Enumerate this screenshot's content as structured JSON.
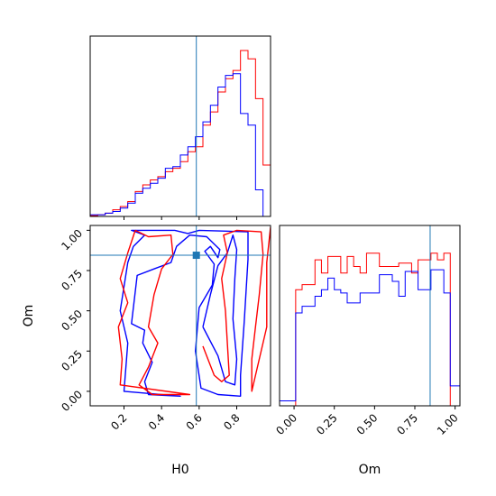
{
  "chart_data": [
    {
      "panel": "H0 marginal",
      "type": "histogram",
      "x_range": [
        0.02,
        0.98
      ],
      "bins": [
        0.02,
        0.06,
        0.1,
        0.14,
        0.18,
        0.22,
        0.26,
        0.3,
        0.34,
        0.38,
        0.42,
        0.46,
        0.5,
        0.54,
        0.58,
        0.62,
        0.66,
        0.7,
        0.74,
        0.78,
        0.82,
        0.86,
        0.9,
        0.94,
        0.98
      ],
      "series": [
        {
          "color": "#ff0000",
          "values": [
            0.005,
            0.01,
            0.02,
            0.04,
            0.06,
            0.09,
            0.15,
            0.19,
            0.22,
            0.24,
            0.27,
            0.29,
            0.33,
            0.39,
            0.42,
            0.55,
            0.63,
            0.75,
            0.83,
            0.88,
            1.0,
            0.95,
            0.71,
            0.31
          ]
        },
        {
          "color": "#0000ff",
          "values": [
            0.01,
            0.01,
            0.02,
            0.03,
            0.05,
            0.08,
            0.14,
            0.17,
            0.2,
            0.23,
            0.29,
            0.3,
            0.37,
            0.42,
            0.48,
            0.57,
            0.67,
            0.78,
            0.85,
            0.86,
            0.62,
            0.55,
            0.16,
            0.0
          ]
        }
      ],
      "truth_line": 0.585
    },
    {
      "panel": "Om marginal",
      "type": "histogram",
      "x_range": [
        -0.09,
        1.03
      ],
      "bins": [
        -0.09,
        -0.03,
        0.01,
        0.05,
        0.09,
        0.13,
        0.17,
        0.21,
        0.25,
        0.29,
        0.33,
        0.37,
        0.41,
        0.45,
        0.49,
        0.53,
        0.57,
        0.61,
        0.65,
        0.69,
        0.73,
        0.77,
        0.81,
        0.85,
        0.89,
        0.93,
        0.97,
        1.03
      ],
      "series": [
        {
          "color": "#ff0000",
          "values": [
            0,
            0,
            0.7,
            0.73,
            0.73,
            0.88,
            0.8,
            0.9,
            0.9,
            0.8,
            0.9,
            0.84,
            0.8,
            0.92,
            0.92,
            0.84,
            0.84,
            0.84,
            0.86,
            0.86,
            0.8,
            0.88,
            0.88,
            0.92,
            0.88,
            0.92,
            0
          ]
        },
        {
          "color": "#0000ff",
          "values": [
            0.03,
            0.03,
            0.56,
            0.6,
            0.6,
            0.66,
            0.7,
            0.77,
            0.7,
            0.68,
            0.62,
            0.62,
            0.68,
            0.68,
            0.68,
            0.79,
            0.79,
            0.75,
            0.66,
            0.81,
            0.81,
            0.7,
            0.7,
            0.82,
            0.82,
            0.68,
            0.12
          ]
        }
      ],
      "truth_line": 0.845
    },
    {
      "panel": "H0 vs Om joint",
      "type": "contour",
      "x_range": [
        0.02,
        0.98
      ],
      "y_range": [
        -0.09,
        1.03
      ],
      "xlabel": "H0",
      "ylabel": "Om",
      "xticks": [
        "0.2",
        "0.4",
        "0.6",
        "0.8"
      ],
      "xtick_values": [
        0.2,
        0.4,
        0.6,
        0.8
      ],
      "yticks": [
        "0.00",
        "0.25",
        "0.50",
        "0.75",
        "1.00"
      ],
      "ytick_values": [
        0.0,
        0.25,
        0.5,
        0.75,
        1.0
      ],
      "truth_point": [
        0.585,
        0.845
      ],
      "contours": [
        {
          "color": "#0000ff",
          "points": [
            [
              0.25,
              0.9
            ],
            [
              0.31,
              0.97
            ],
            [
              0.24,
              1.0
            ],
            [
              0.47,
              1.0
            ],
            [
              0.54,
              0.98
            ],
            [
              0.6,
              1.0
            ],
            [
              0.86,
              0.99
            ],
            [
              0.86,
              0.82
            ],
            [
              0.84,
              0.43
            ],
            [
              0.82,
              0.1
            ],
            [
              0.82,
              -0.03
            ],
            [
              0.7,
              -0.02
            ],
            [
              0.61,
              0.02
            ],
            [
              0.58,
              0.25
            ],
            [
              0.6,
              0.52
            ],
            [
              0.67,
              0.66
            ],
            [
              0.68,
              0.79
            ],
            [
              0.63,
              0.87
            ],
            [
              0.66,
              0.9
            ],
            [
              0.7,
              0.83
            ],
            [
              0.71,
              0.88
            ],
            [
              0.64,
              0.96
            ],
            [
              0.55,
              0.97
            ],
            [
              0.48,
              0.9
            ],
            [
              0.45,
              0.8
            ],
            [
              0.36,
              0.76
            ],
            [
              0.27,
              0.72
            ],
            [
              0.24,
              0.42
            ],
            [
              0.31,
              0.38
            ],
            [
              0.3,
              0.3
            ],
            [
              0.35,
              0.18
            ],
            [
              0.31,
              0.06
            ],
            [
              0.33,
              -0.02
            ],
            [
              0.5,
              -0.03
            ],
            [
              0.2,
              0.0
            ],
            [
              0.22,
              0.3
            ],
            [
              0.18,
              0.5
            ],
            [
              0.22,
              0.8
            ],
            [
              0.25,
              0.9
            ]
          ]
        },
        {
          "color": "#0000ff",
          "points": [
            [
              0.62,
              0.4
            ],
            [
              0.7,
              0.22
            ],
            [
              0.74,
              0.06
            ],
            [
              0.79,
              0.04
            ],
            [
              0.8,
              0.2
            ],
            [
              0.78,
              0.45
            ],
            [
              0.79,
              0.7
            ],
            [
              0.8,
              0.88
            ],
            [
              0.78,
              0.97
            ],
            [
              0.75,
              0.86
            ],
            [
              0.7,
              0.78
            ],
            [
              0.66,
              0.6
            ],
            [
              0.62,
              0.4
            ]
          ]
        },
        {
          "color": "#ff0000",
          "points": [
            [
              0.26,
              1.0
            ],
            [
              0.33,
              0.96
            ],
            [
              0.45,
              0.97
            ],
            [
              0.46,
              0.85
            ],
            [
              0.4,
              0.76
            ],
            [
              0.36,
              0.6
            ],
            [
              0.33,
              0.4
            ],
            [
              0.38,
              0.3
            ],
            [
              0.33,
              0.15
            ],
            [
              0.28,
              0.04
            ],
            [
              0.35,
              -0.02
            ],
            [
              0.55,
              -0.02
            ],
            [
              0.18,
              0.04
            ],
            [
              0.19,
              0.2
            ],
            [
              0.17,
              0.4
            ],
            [
              0.22,
              0.55
            ],
            [
              0.18,
              0.7
            ],
            [
              0.22,
              0.86
            ],
            [
              0.26,
              1.0
            ]
          ]
        },
        {
          "color": "#ff0000",
          "points": [
            [
              0.62,
              0.28
            ],
            [
              0.68,
              0.1
            ],
            [
              0.72,
              0.06
            ],
            [
              0.76,
              0.1
            ],
            [
              0.75,
              0.3
            ],
            [
              0.74,
              0.5
            ],
            [
              0.72,
              0.7
            ],
            [
              0.75,
              0.86
            ],
            [
              0.73,
              0.97
            ],
            [
              0.8,
              1.0
            ],
            [
              0.93,
              0.99
            ],
            [
              0.94,
              0.85
            ],
            [
              0.92,
              0.6
            ],
            [
              0.9,
              0.4
            ],
            [
              0.88,
              0.2
            ],
            [
              0.88,
              0.0
            ],
            [
              0.96,
              0.4
            ],
            [
              0.96,
              0.8
            ],
            [
              0.98,
              1.02
            ]
          ]
        }
      ]
    },
    {
      "panel": "Om bottom axis",
      "xlabel": "Om",
      "xticks": [
        "0.00",
        "0.25",
        "0.50",
        "0.75",
        "1.00"
      ],
      "xtick_values": [
        0.0,
        0.25,
        0.5,
        0.75,
        1.0
      ]
    }
  ]
}
